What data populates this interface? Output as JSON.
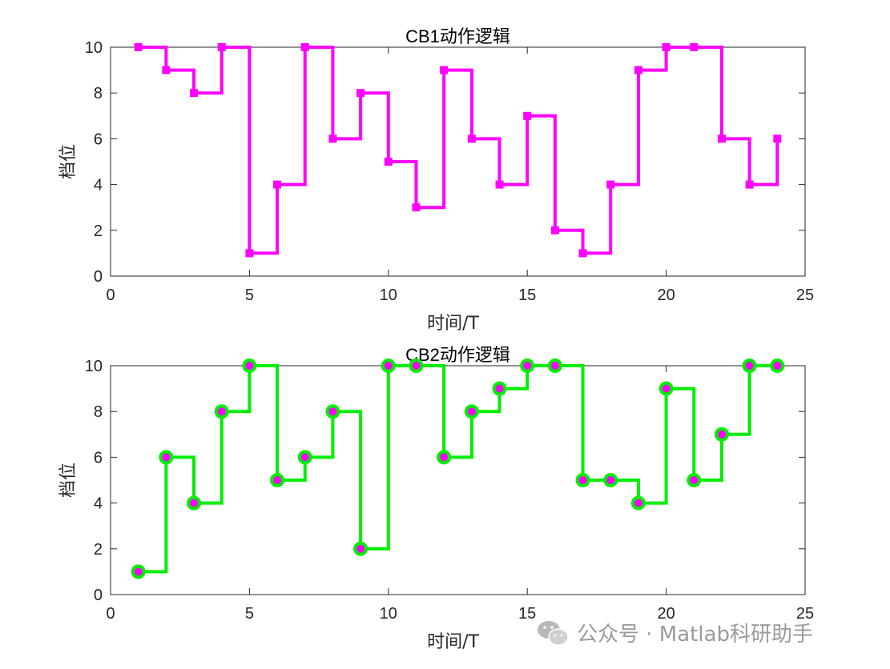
{
  "chart_data": [
    {
      "type": "line",
      "step": "post",
      "title": "CB1动作逻辑",
      "xlabel": "时间/T",
      "ylabel": "档位",
      "xlim": [
        0,
        25
      ],
      "ylim": [
        0,
        10
      ],
      "xticks": [
        "0",
        "5",
        "10",
        "15",
        "20",
        "25"
      ],
      "yticks": [
        "0",
        "2",
        "4",
        "6",
        "8",
        "10"
      ],
      "line_color": "#ff00ff",
      "marker": "square",
      "marker_color": "#ff00ff",
      "series": [
        {
          "x": [
            1,
            2,
            3,
            4,
            5,
            6,
            7,
            8,
            9,
            10,
            11,
            12,
            13,
            14,
            15,
            16,
            17,
            18,
            19,
            20,
            21,
            22,
            23,
            24
          ],
          "values": [
            10,
            9,
            8,
            10,
            1,
            4,
            10,
            6,
            8,
            5,
            3,
            9,
            6,
            4,
            7,
            2,
            1,
            4,
            9,
            10,
            10,
            6,
            4,
            6
          ]
        }
      ]
    },
    {
      "type": "line",
      "step": "post",
      "title": "CB2动作逻辑",
      "xlabel": "时间/T",
      "ylabel": "档位",
      "xlim": [
        0,
        25
      ],
      "ylim": [
        0,
        10
      ],
      "xticks": [
        "0",
        "5",
        "10",
        "15",
        "20",
        "25"
      ],
      "yticks": [
        "0",
        "2",
        "4",
        "6",
        "8",
        "10"
      ],
      "line_color": "#00ee00",
      "marker": "circle",
      "marker_color": "#ff00ff",
      "marker_edge": "#00ee00",
      "series": [
        {
          "x": [
            1,
            2,
            3,
            4,
            5,
            6,
            7,
            8,
            9,
            10,
            11,
            12,
            13,
            14,
            15,
            16,
            17,
            18,
            19,
            20,
            21,
            22,
            23,
            24
          ],
          "values": [
            1,
            6,
            4,
            8,
            10,
            5,
            6,
            8,
            2,
            10,
            10,
            6,
            8,
            9,
            10,
            10,
            5,
            5,
            4,
            9,
            5,
            7,
            10,
            10
          ]
        }
      ]
    }
  ],
  "watermark": {
    "text": "公众号 · Matlab科研助手",
    "icon": "wechat-icon"
  }
}
